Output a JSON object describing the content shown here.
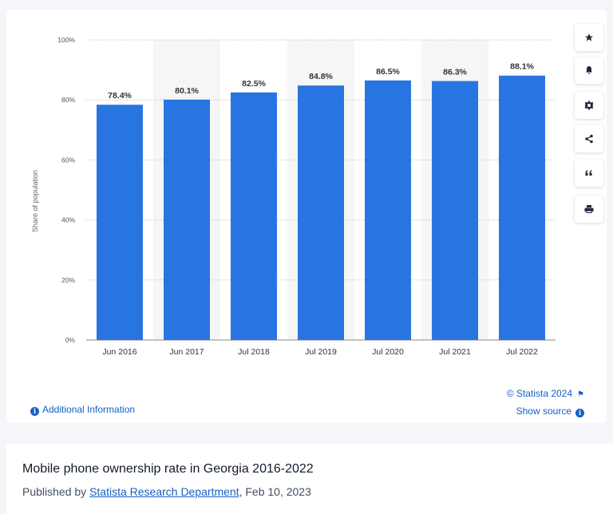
{
  "chart_data": {
    "type": "bar",
    "categories": [
      "Jun 2016",
      "Jun 2017",
      "Jul 2018",
      "Jul 2019",
      "Jul 2020",
      "Jul 2021",
      "Jul 2022"
    ],
    "values": [
      78.4,
      80.1,
      82.5,
      84.8,
      86.5,
      86.3,
      88.1
    ],
    "value_labels": [
      "78.4%",
      "80.1%",
      "82.5%",
      "84.8%",
      "86.5%",
      "86.3%",
      "88.1%"
    ],
    "ylabel": "Share of population",
    "ylim": [
      0,
      100
    ],
    "yticks": [
      0,
      20,
      40,
      60,
      80,
      100
    ],
    "ytick_labels": [
      "0%",
      "20%",
      "40%",
      "60%",
      "80%",
      "100%"
    ],
    "grid": true,
    "bar_color": "#2874e0",
    "band_color": "#f6f6f6"
  },
  "toolbar": {
    "icons": [
      "star-icon",
      "bell-icon",
      "gear-icon",
      "share-icon",
      "quote-icon",
      "print-icon"
    ]
  },
  "links": {
    "additional_info": "Additional Information",
    "credit": "© Statista 2024",
    "show_source": "Show source"
  },
  "footer": {
    "title": "Mobile phone ownership rate in Georgia 2016-2022",
    "published_prefix": "Published by ",
    "publisher": "Statista Research Department",
    "published_date": ", Feb 10, 2023"
  },
  "colors": {
    "accent": "#1560c4",
    "page_background": "#f4f6f9"
  }
}
